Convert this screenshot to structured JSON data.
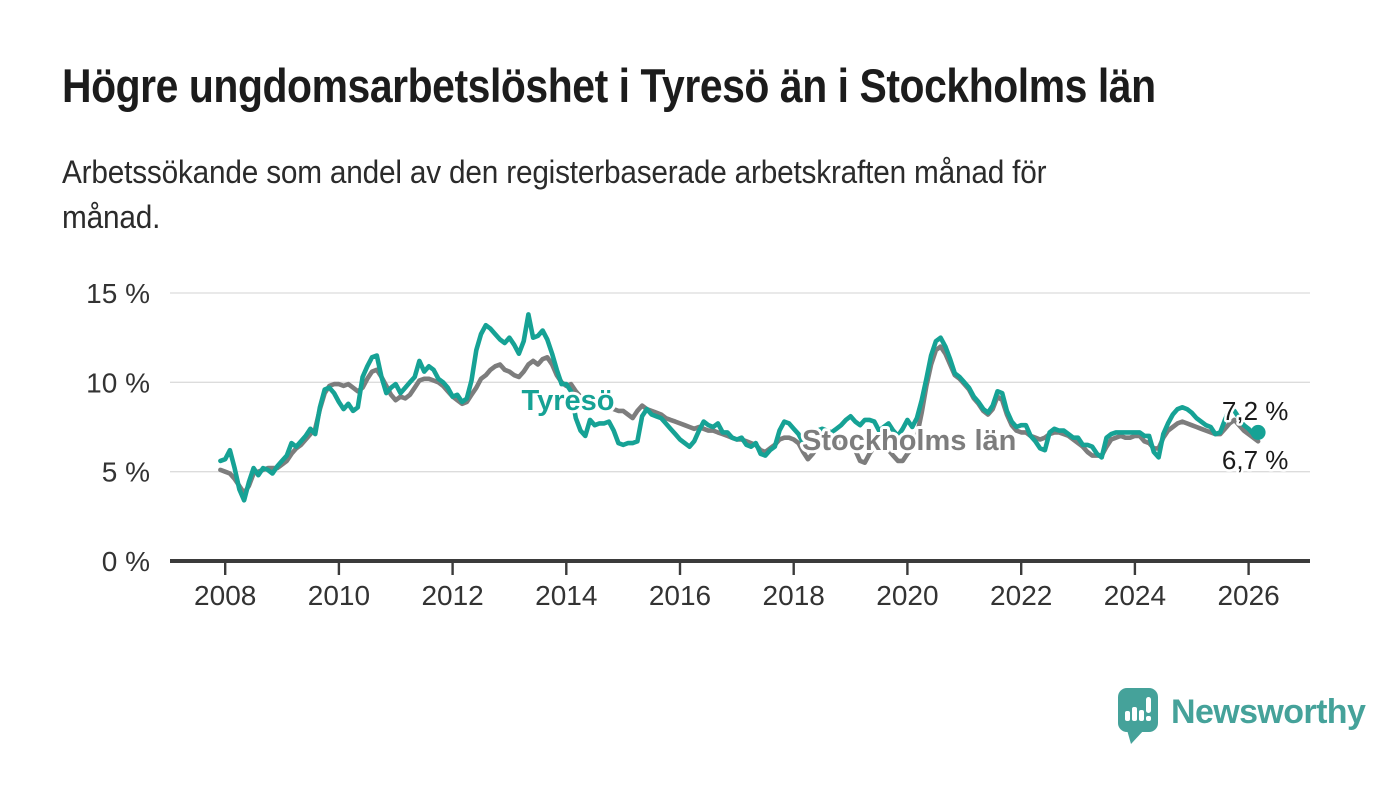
{
  "chart_data": {
    "type": "line",
    "title": "Högre ungdomsarbetslöshet i Tyresö än i Stockholms län",
    "subtitle": "Arbetssökande som andel av den registerbaserade arbetskraften månad för månad.",
    "subtitle_lines": [
      "Arbetssökande som andel av den registerbaserade arbetskraften månad för",
      "månad."
    ],
    "x_axis": {
      "lim": [
        2007.03,
        2027.08
      ],
      "ticks": [
        {
          "v": 2008,
          "label": "2008"
        },
        {
          "v": 2010,
          "label": "2010"
        },
        {
          "v": 2012,
          "label": "2012"
        },
        {
          "v": 2014,
          "label": "2014"
        },
        {
          "v": 2016,
          "label": "2016"
        },
        {
          "v": 2018,
          "label": "2018"
        },
        {
          "v": 2020,
          "label": "2020"
        },
        {
          "v": 2022,
          "label": "2022"
        },
        {
          "v": 2024,
          "label": "2024"
        },
        {
          "v": 2026,
          "label": "2026"
        }
      ]
    },
    "y_axis": {
      "lim": [
        0,
        15
      ],
      "unit": "%",
      "ticks": [
        {
          "v": 0,
          "label": "0 %"
        },
        {
          "v": 5,
          "label": "5 %"
        },
        {
          "v": 10,
          "label": "10 %"
        },
        {
          "v": 15,
          "label": "15 %"
        }
      ]
    },
    "grid": "horizontal",
    "start_year": 2007.9167,
    "frequency": "monthly",
    "series": [
      {
        "name": "Stockholms län",
        "color": "#7d7d7d",
        "end_dot": false,
        "last_value_label": "6,7 %",
        "values": [
          5.1,
          5.0,
          4.9,
          4.6,
          4.2,
          3.8,
          4.2,
          4.9,
          5.0,
          5.1,
          5.2,
          5.2,
          5.2,
          5.4,
          5.6,
          6.0,
          6.3,
          6.5,
          6.8,
          7.1,
          7.4,
          8.5,
          9.4,
          9.8,
          9.9,
          9.9,
          9.8,
          9.9,
          9.7,
          9.5,
          9.7,
          10.2,
          10.6,
          10.7,
          10.3,
          9.8,
          9.3,
          9.0,
          9.2,
          9.1,
          9.3,
          9.7,
          10.1,
          10.2,
          10.2,
          10.1,
          10.0,
          9.8,
          9.5,
          9.2,
          9.0,
          8.8,
          8.9,
          9.3,
          9.7,
          10.2,
          10.4,
          10.7,
          10.9,
          11.0,
          10.7,
          10.6,
          10.4,
          10.3,
          10.6,
          11.0,
          11.2,
          11.0,
          11.3,
          11.4,
          11.0,
          10.4,
          10.0,
          9.8,
          9.9,
          9.5,
          9.2,
          8.9,
          8.8,
          8.7,
          8.6,
          8.5,
          8.6,
          8.5,
          8.4,
          8.4,
          8.2,
          8.0,
          8.4,
          8.7,
          8.5,
          8.4,
          8.3,
          8.2,
          8.0,
          7.9,
          7.8,
          7.7,
          7.6,
          7.5,
          7.4,
          7.5,
          7.4,
          7.3,
          7.3,
          7.2,
          7.1,
          7.0,
          6.9,
          6.8,
          6.8,
          6.7,
          6.6,
          6.5,
          6.2,
          6.1,
          6.3,
          6.5,
          6.8,
          6.9,
          6.9,
          6.8,
          6.6,
          6.1,
          5.7,
          6.0,
          6.4,
          6.6,
          6.6,
          6.5,
          6.6,
          6.7,
          6.7,
          6.7,
          6.2,
          5.6,
          5.5,
          6.0,
          6.4,
          6.5,
          6.4,
          6.2,
          5.9,
          5.6,
          5.6,
          6.0,
          6.3,
          7.0,
          8.3,
          9.8,
          11.0,
          11.8,
          12.0,
          11.6,
          11.0,
          10.4,
          10.2,
          9.9,
          9.6,
          9.1,
          8.8,
          8.4,
          8.2,
          8.5,
          9.2,
          9.0,
          8.2,
          7.6,
          7.3,
          7.2,
          7.2,
          7.0,
          6.9,
          6.8,
          6.9,
          7.1,
          7.2,
          7.2,
          7.1,
          7.0,
          6.8,
          6.6,
          6.4,
          6.1,
          5.9,
          5.9,
          5.9,
          6.4,
          6.8,
          6.9,
          7.0,
          6.9,
          6.9,
          7.0,
          7.0,
          6.7,
          6.6,
          6.3,
          6.3,
          6.9,
          7.3,
          7.5,
          7.7,
          7.8,
          7.7,
          7.6,
          7.5,
          7.4,
          7.3,
          7.2,
          7.1,
          7.1,
          7.4,
          7.7,
          7.9,
          7.6,
          7.3,
          7.1,
          6.9,
          6.7
        ]
      },
      {
        "name": "Tyresö",
        "color": "#16a295",
        "end_dot": true,
        "last_value_label": "7,2 %",
        "values": [
          5.6,
          5.7,
          6.2,
          5.2,
          4.0,
          3.4,
          4.4,
          5.2,
          4.8,
          5.2,
          5.1,
          4.9,
          5.3,
          5.6,
          5.9,
          6.6,
          6.4,
          6.7,
          7.0,
          7.4,
          7.1,
          8.6,
          9.6,
          9.7,
          9.4,
          8.9,
          8.5,
          8.8,
          8.4,
          8.6,
          10.3,
          10.9,
          11.4,
          11.5,
          10.3,
          9.4,
          9.7,
          9.9,
          9.4,
          9.7,
          10.0,
          10.3,
          11.2,
          10.6,
          10.9,
          10.7,
          10.2,
          10.0,
          9.7,
          9.2,
          9.3,
          8.9,
          9.1,
          10.1,
          11.8,
          12.7,
          13.2,
          13.0,
          12.7,
          12.4,
          12.2,
          12.5,
          12.1,
          11.6,
          12.3,
          13.8,
          12.5,
          12.6,
          12.9,
          12.4,
          11.6,
          10.7,
          9.9,
          9.9,
          9.5,
          8.0,
          7.3,
          7.0,
          7.9,
          7.6,
          7.7,
          7.7,
          7.8,
          7.3,
          6.6,
          6.5,
          6.6,
          6.6,
          6.7,
          8.1,
          8.5,
          8.2,
          8.1,
          8.0,
          7.7,
          7.4,
          7.1,
          6.8,
          6.6,
          6.4,
          6.7,
          7.3,
          7.8,
          7.6,
          7.5,
          7.7,
          7.2,
          7.2,
          6.9,
          6.8,
          6.9,
          6.5,
          6.4,
          6.6,
          6.0,
          5.9,
          6.2,
          6.4,
          7.3,
          7.8,
          7.7,
          7.4,
          7.1,
          6.6,
          6.2,
          6.6,
          7.3,
          7.4,
          7.3,
          7.2,
          7.4,
          7.6,
          7.9,
          8.1,
          7.8,
          7.6,
          7.9,
          7.9,
          7.8,
          7.3,
          7.5,
          7.7,
          7.3,
          7.0,
          7.4,
          7.9,
          7.5,
          8.0,
          9.0,
          10.2,
          11.5,
          12.3,
          12.5,
          12.0,
          11.3,
          10.5,
          10.3,
          10.0,
          9.7,
          9.2,
          8.9,
          8.5,
          8.3,
          8.7,
          9.5,
          9.4,
          8.4,
          7.8,
          7.5,
          7.6,
          7.6,
          7.0,
          6.7,
          6.3,
          6.2,
          7.2,
          7.4,
          7.3,
          7.3,
          7.1,
          6.9,
          6.9,
          6.5,
          6.5,
          6.4,
          6.0,
          5.8,
          6.9,
          7.1,
          7.2,
          7.2,
          7.2,
          7.2,
          7.2,
          7.2,
          7.0,
          7.0,
          6.1,
          5.8,
          7.1,
          7.7,
          8.2,
          8.5,
          8.6,
          8.5,
          8.3,
          8.0,
          7.8,
          7.6,
          7.5,
          7.1,
          7.2,
          7.9,
          8.5,
          8.4,
          8.0,
          7.6,
          7.4,
          7.1,
          7.2
        ]
      }
    ],
    "annotations": [
      {
        "text": "Tyresö",
        "x": 2014.03,
        "y": 8.95,
        "anchor": "middle",
        "cls": "ann ann-series",
        "color": "#16a295"
      },
      {
        "text": "Stockholms län",
        "x": 2020.03,
        "y": 6.71,
        "anchor": "middle",
        "cls": "ann ann-series",
        "color": "#7d7d7d"
      },
      {
        "text": "7,2 %",
        "x": 2026.7,
        "y": 8.39,
        "anchor": "end",
        "cls": "ann ann-value",
        "color": "#1a1a1a"
      },
      {
        "text": "6,7 %",
        "x": 2026.7,
        "y": 5.65,
        "anchor": "end",
        "cls": "ann ann-value",
        "color": "#1a1a1a"
      }
    ]
  },
  "footer": {
    "brand": "Newsworthy",
    "brand_color": "#45a29a"
  }
}
